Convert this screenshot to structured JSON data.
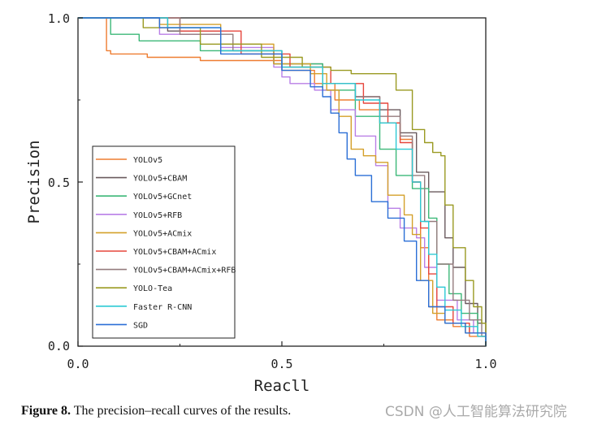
{
  "chart_data": {
    "type": "line",
    "xlabel": "Reacll",
    "ylabel": "Precision",
    "xlim": [
      0,
      1
    ],
    "ylim": [
      0,
      1
    ],
    "x_ticks": [
      "0.0",
      "0.5",
      "1.0"
    ],
    "y_ticks": [
      "0.0",
      "0.5",
      "1.0"
    ],
    "legend_position": "center-left",
    "series": [
      {
        "name": "YOLOv5",
        "color": "#ee7d31",
        "points": [
          [
            0,
            1
          ],
          [
            0.07,
            1
          ],
          [
            0.07,
            0.9
          ],
          [
            0.08,
            0.89
          ],
          [
            0.17,
            0.88
          ],
          [
            0.3,
            0.87
          ],
          [
            0.5,
            0.84
          ],
          [
            0.58,
            0.8
          ],
          [
            0.63,
            0.75
          ],
          [
            0.69,
            0.72
          ],
          [
            0.74,
            0.68
          ],
          [
            0.79,
            0.63
          ],
          [
            0.82,
            0.5
          ],
          [
            0.84,
            0.3
          ],
          [
            0.86,
            0.12
          ],
          [
            0.88,
            0.08
          ],
          [
            0.92,
            0.06
          ],
          [
            0.96,
            0.03
          ],
          [
            1,
            0
          ]
        ]
      },
      {
        "name": "YOLOv5+CBAM",
        "color": "#6a5a5e",
        "points": [
          [
            0,
            1
          ],
          [
            0.2,
            1
          ],
          [
            0.22,
            0.96
          ],
          [
            0.35,
            0.9
          ],
          [
            0.48,
            0.86
          ],
          [
            0.6,
            0.8
          ],
          [
            0.68,
            0.76
          ],
          [
            0.74,
            0.72
          ],
          [
            0.79,
            0.65
          ],
          [
            0.83,
            0.53
          ],
          [
            0.86,
            0.47
          ],
          [
            0.9,
            0.33
          ],
          [
            0.92,
            0.24
          ],
          [
            0.95,
            0.13
          ],
          [
            0.98,
            0.07
          ],
          [
            1,
            0
          ]
        ]
      },
      {
        "name": "YOLOv5+GCnet",
        "color": "#3cb878",
        "points": [
          [
            0,
            1
          ],
          [
            0.07,
            1
          ],
          [
            0.08,
            0.95
          ],
          [
            0.15,
            0.93
          ],
          [
            0.3,
            0.9
          ],
          [
            0.48,
            0.86
          ],
          [
            0.6,
            0.78
          ],
          [
            0.68,
            0.7
          ],
          [
            0.74,
            0.6
          ],
          [
            0.78,
            0.52
          ],
          [
            0.82,
            0.48
          ],
          [
            0.86,
            0.39
          ],
          [
            0.88,
            0.25
          ],
          [
            0.91,
            0.16
          ],
          [
            0.94,
            0.1
          ],
          [
            0.98,
            0.04
          ],
          [
            1,
            0
          ]
        ]
      },
      {
        "name": "YOLOv5+RFB",
        "color": "#b97fe6",
        "points": [
          [
            0,
            1
          ],
          [
            0.15,
            1
          ],
          [
            0.2,
            0.95
          ],
          [
            0.35,
            0.91
          ],
          [
            0.48,
            0.85
          ],
          [
            0.5,
            0.82
          ],
          [
            0.52,
            0.8
          ],
          [
            0.58,
            0.78
          ],
          [
            0.62,
            0.72
          ],
          [
            0.68,
            0.64
          ],
          [
            0.73,
            0.55
          ],
          [
            0.76,
            0.42
          ],
          [
            0.79,
            0.36
          ],
          [
            0.83,
            0.33
          ],
          [
            0.85,
            0.24
          ],
          [
            0.88,
            0.14
          ],
          [
            0.93,
            0.08
          ],
          [
            0.97,
            0.04
          ],
          [
            1,
            0
          ]
        ]
      },
      {
        "name": "YOLOv5+ACmix",
        "color": "#d4a02a",
        "points": [
          [
            0,
            1
          ],
          [
            0.17,
            1
          ],
          [
            0.2,
            0.98
          ],
          [
            0.35,
            0.92
          ],
          [
            0.48,
            0.86
          ],
          [
            0.57,
            0.83
          ],
          [
            0.61,
            0.78
          ],
          [
            0.64,
            0.7
          ],
          [
            0.67,
            0.6
          ],
          [
            0.7,
            0.58
          ],
          [
            0.73,
            0.56
          ],
          [
            0.76,
            0.46
          ],
          [
            0.8,
            0.4
          ],
          [
            0.82,
            0.34
          ],
          [
            0.84,
            0.2
          ],
          [
            0.87,
            0.1
          ],
          [
            0.9,
            0.07
          ],
          [
            0.95,
            0.04
          ],
          [
            1,
            0
          ]
        ]
      },
      {
        "name": "YOLOv5+CBAM+ACmix",
        "color": "#e6463c",
        "points": [
          [
            0,
            1
          ],
          [
            0.22,
            1
          ],
          [
            0.25,
            0.96
          ],
          [
            0.4,
            0.89
          ],
          [
            0.52,
            0.85
          ],
          [
            0.62,
            0.8
          ],
          [
            0.7,
            0.74
          ],
          [
            0.76,
            0.68
          ],
          [
            0.79,
            0.62
          ],
          [
            0.82,
            0.5
          ],
          [
            0.84,
            0.36
          ],
          [
            0.86,
            0.22
          ],
          [
            0.88,
            0.12
          ],
          [
            0.92,
            0.07
          ],
          [
            0.96,
            0.04
          ],
          [
            1,
            0
          ]
        ]
      },
      {
        "name": "YOLOv5+CBAM+ACmix+RFB",
        "color": "#957c7e",
        "points": [
          [
            0,
            1
          ],
          [
            0.22,
            1
          ],
          [
            0.25,
            0.95
          ],
          [
            0.38,
            0.9
          ],
          [
            0.5,
            0.85
          ],
          [
            0.6,
            0.8
          ],
          [
            0.68,
            0.76
          ],
          [
            0.74,
            0.7
          ],
          [
            0.79,
            0.64
          ],
          [
            0.82,
            0.52
          ],
          [
            0.85,
            0.38
          ],
          [
            0.88,
            0.25
          ],
          [
            0.92,
            0.14
          ],
          [
            0.96,
            0.08
          ],
          [
            0.99,
            0.03
          ],
          [
            1,
            0
          ]
        ]
      },
      {
        "name": "YOLO-Tea",
        "color": "#9a9a22",
        "points": [
          [
            0,
            1
          ],
          [
            0.16,
            1
          ],
          [
            0.16,
            0.97
          ],
          [
            0.3,
            0.92
          ],
          [
            0.45,
            0.88
          ],
          [
            0.55,
            0.85
          ],
          [
            0.62,
            0.84
          ],
          [
            0.67,
            0.83
          ],
          [
            0.74,
            0.83
          ],
          [
            0.78,
            0.78
          ],
          [
            0.82,
            0.66
          ],
          [
            0.85,
            0.62
          ],
          [
            0.87,
            0.59
          ],
          [
            0.89,
            0.58
          ],
          [
            0.9,
            0.43
          ],
          [
            0.92,
            0.3
          ],
          [
            0.95,
            0.2
          ],
          [
            0.97,
            0.12
          ],
          [
            0.99,
            0.07
          ],
          [
            1,
            0
          ]
        ]
      },
      {
        "name": "Faster R-CNN",
        "color": "#2cc9d4",
        "points": [
          [
            0,
            1
          ],
          [
            0.2,
            1
          ],
          [
            0.22,
            0.97
          ],
          [
            0.35,
            0.9
          ],
          [
            0.5,
            0.85
          ],
          [
            0.6,
            0.8
          ],
          [
            0.68,
            0.75
          ],
          [
            0.74,
            0.68
          ],
          [
            0.78,
            0.6
          ],
          [
            0.82,
            0.5
          ],
          [
            0.84,
            0.38
          ],
          [
            0.86,
            0.28
          ],
          [
            0.88,
            0.18
          ],
          [
            0.9,
            0.11
          ],
          [
            0.94,
            0.06
          ],
          [
            0.98,
            0.03
          ],
          [
            1,
            0
          ]
        ]
      },
      {
        "name": "SGD",
        "color": "#2b6fd6",
        "points": [
          [
            0,
            1
          ],
          [
            0.17,
            1
          ],
          [
            0.2,
            0.97
          ],
          [
            0.35,
            0.89
          ],
          [
            0.5,
            0.84
          ],
          [
            0.57,
            0.79
          ],
          [
            0.6,
            0.76
          ],
          [
            0.62,
            0.71
          ],
          [
            0.64,
            0.65
          ],
          [
            0.66,
            0.57
          ],
          [
            0.68,
            0.52
          ],
          [
            0.72,
            0.44
          ],
          [
            0.76,
            0.39
          ],
          [
            0.8,
            0.32
          ],
          [
            0.83,
            0.2
          ],
          [
            0.86,
            0.12
          ],
          [
            0.9,
            0.07
          ],
          [
            0.95,
            0.04
          ],
          [
            1,
            0
          ]
        ]
      }
    ]
  },
  "caption": {
    "label": "Figure 8.",
    "text": " The precision–recall curves of the results."
  },
  "watermark": "CSDN @人工智能算法研究院"
}
